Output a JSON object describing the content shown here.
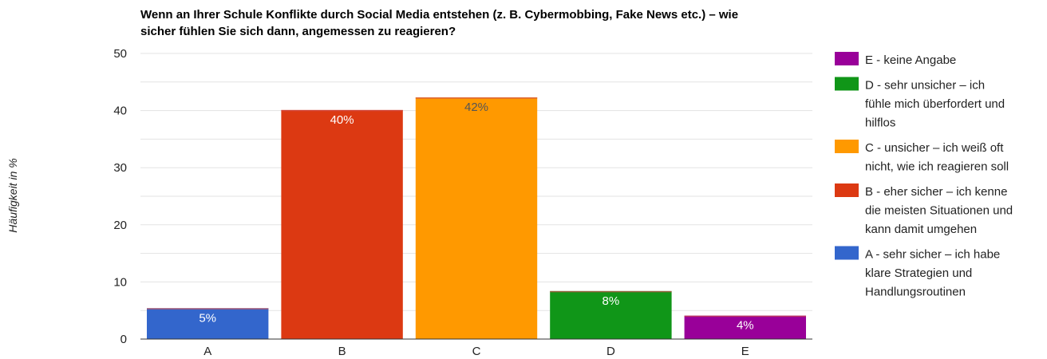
{
  "chart_data": {
    "type": "bar",
    "title_lines": [
      "Wenn an Ihrer Schule Konflikte durch Social Media entstehen (z. B. Cybermobbing, Fake News etc.) – wie",
      "sicher fühlen Sie sich dann, angemessen zu reagieren?"
    ],
    "ylabel": "Häufigkeit in %",
    "xlabel": "",
    "ylim": [
      0,
      50
    ],
    "yticks": [
      0,
      10,
      20,
      30,
      40,
      50
    ],
    "grid": true,
    "legend_position": "right",
    "categories": [
      "A",
      "B",
      "C",
      "D",
      "E"
    ],
    "values": [
      5.4,
      40.1,
      42.3,
      8.4,
      4.1
    ],
    "data_labels": [
      "5%",
      "40%",
      "42%",
      "8%",
      "4%"
    ],
    "colors": [
      "#3366cc",
      "#dc3912",
      "#ff9900",
      "#109618",
      "#990099"
    ],
    "label_colors": [
      "#ffffff",
      "#ffffff",
      "#555555",
      "#ffffff",
      "#ffffff"
    ],
    "legend": [
      {
        "lines": [
          "E - keine Angabe"
        ],
        "color": "#990099"
      },
      {
        "lines": [
          "D - sehr unsicher – ich",
          "fühle mich überfordert und",
          "hilflos"
        ],
        "color": "#109618"
      },
      {
        "lines": [
          "C - unsicher – ich weiß oft",
          "nicht, wie ich reagieren soll"
        ],
        "color": "#ff9900"
      },
      {
        "lines": [
          "B - eher sicher – ich kenne",
          "die meisten Situationen und",
          "kann damit umgehen"
        ],
        "color": "#dc3912"
      },
      {
        "lines": [
          "A - sehr sicher – ich habe",
          "klare Strategien und",
          "Handlungsroutinen"
        ],
        "color": "#3366cc"
      }
    ]
  }
}
